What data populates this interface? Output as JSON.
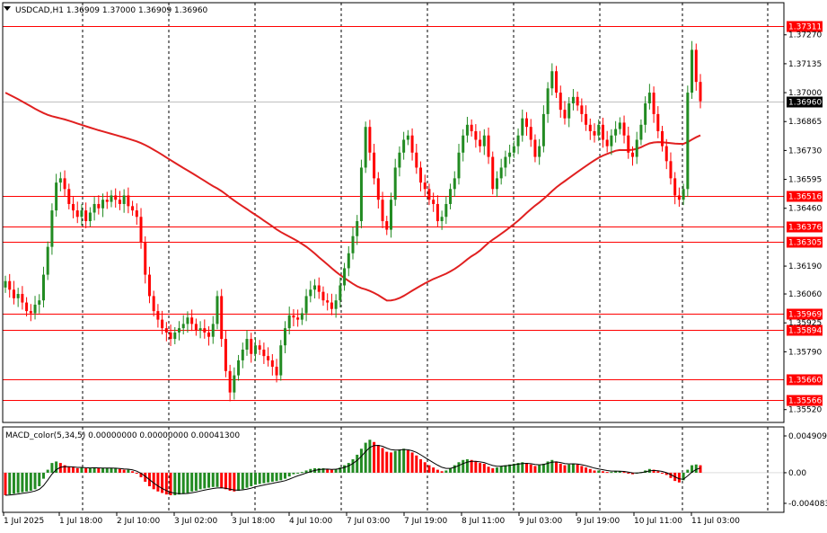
{
  "chart_header": {
    "symbol_info": "USDCAD,H1  1.36909 1.37000 1.36909 1.36960"
  },
  "indicator_header": {
    "label": "MACD_color(5,34,5) 0.00000000 0.00000000 0.00041300"
  },
  "colors": {
    "bull": "#228b22",
    "bear": "#ff0000",
    "level_line": "#ff0000",
    "ma_line": "#e02020",
    "price_tag": "#000000",
    "grid": "#000000"
  },
  "chart_data": [
    {
      "type": "candlestick",
      "title": "USDCAD,H1",
      "ylim": [
        1.3546,
        1.3742
      ],
      "price_axis_ticks": [
        "1.37270",
        "1.37135",
        "1.37000",
        "1.36865",
        "1.36730",
        "1.36595",
        "1.36460",
        "1.36190",
        "1.36060",
        "1.35925",
        "1.35790",
        "1.35520"
      ],
      "horizontal_levels": [
        {
          "value": 1.37311,
          "label": "1.37311"
        },
        {
          "value": 1.36516,
          "label": "1.36516"
        },
        {
          "value": 1.36376,
          "label": "1.36376"
        },
        {
          "value": 1.36305,
          "label": "1.36305"
        },
        {
          "value": 1.35969,
          "label": "1.35969"
        },
        {
          "value": 1.35894,
          "label": "1.35894"
        },
        {
          "value": 1.3566,
          "label": "1.35660"
        },
        {
          "value": 1.35566,
          "label": "1.35566"
        }
      ],
      "current_price": {
        "value": 1.3696,
        "label": "1.36960"
      },
      "time_axis_labels": [
        "1 Jul 2025",
        "1 Jul 18:00",
        "2 Jul 10:00",
        "3 Jul 02:00",
        "3 Jul 18:00",
        "4 Jul 10:00",
        "7 Jul 03:00",
        "7 Jul 19:00",
        "8 Jul 11:00",
        "9 Jul 03:00",
        "9 Jul 19:00",
        "10 Jul 11:00",
        "11 Jul 03:00"
      ],
      "candles_close": [
        1.3612,
        1.3608,
        1.3604,
        1.3606,
        1.3602,
        1.3598,
        1.3597,
        1.3601,
        1.3603,
        1.3615,
        1.3628,
        1.3645,
        1.3658,
        1.366,
        1.3655,
        1.3648,
        1.3645,
        1.3642,
        1.3645,
        1.364,
        1.3644,
        1.3648,
        1.3646,
        1.365,
        1.3649,
        1.3652,
        1.365,
        1.3648,
        1.3652,
        1.3647,
        1.3645,
        1.3642,
        1.363,
        1.3615,
        1.3605,
        1.3598,
        1.3594,
        1.359,
        1.3588,
        1.3585,
        1.3588,
        1.359,
        1.3592,
        1.3595,
        1.3592,
        1.3589,
        1.359,
        1.3588,
        1.3586,
        1.3592,
        1.3605,
        1.3585,
        1.357,
        1.356,
        1.3568,
        1.3575,
        1.358,
        1.3585,
        1.3578,
        1.3582,
        1.358,
        1.3577,
        1.3575,
        1.3572,
        1.3568,
        1.3582,
        1.359,
        1.3596,
        1.3595,
        1.3594,
        1.3597,
        1.3605,
        1.3608,
        1.361,
        1.3607,
        1.3603,
        1.3602,
        1.3599,
        1.3603,
        1.361,
        1.3618,
        1.3625,
        1.3633,
        1.364,
        1.3665,
        1.3684,
        1.3672,
        1.366,
        1.365,
        1.364,
        1.3636,
        1.365,
        1.3665,
        1.3672,
        1.3678,
        1.368,
        1.3672,
        1.3665,
        1.3658,
        1.3655,
        1.365,
        1.3648,
        1.364,
        1.3642,
        1.3648,
        1.3655,
        1.366,
        1.3672,
        1.368,
        1.3685,
        1.3682,
        1.3678,
        1.3675,
        1.368,
        1.367,
        1.3655,
        1.366,
        1.3665,
        1.367,
        1.3672,
        1.3675,
        1.368,
        1.3688,
        1.3684,
        1.3678,
        1.367,
        1.3675,
        1.369,
        1.3702,
        1.371,
        1.37,
        1.3692,
        1.3688,
        1.3695,
        1.3698,
        1.3694,
        1.369,
        1.3685,
        1.3682,
        1.368,
        1.3685,
        1.3678,
        1.3675,
        1.368,
        1.3683,
        1.3686,
        1.368,
        1.3672,
        1.367,
        1.3678,
        1.3685,
        1.3695,
        1.37,
        1.369,
        1.3682,
        1.3675,
        1.3668,
        1.366,
        1.3652,
        1.365,
        1.3655,
        1.37,
        1.372,
        1.3705,
        1.3696
      ]
    },
    {
      "type": "bar",
      "title": "MACD_color(5,34,5)",
      "ylim": [
        -0.004083,
        0.004909
      ],
      "axis_ticks": [
        "0.0049093",
        "0.00",
        "-0.0040836"
      ],
      "values": [
        -0.003,
        -0.0029,
        -0.0028,
        -0.0027,
        -0.0026,
        -0.0025,
        -0.0024,
        -0.0022,
        -0.0018,
        -0.0008,
        0.0004,
        0.0013,
        0.0015,
        0.0013,
        0.001,
        0.0008,
        0.0007,
        0.0006,
        0.0007,
        0.0006,
        0.0006,
        0.0007,
        0.0006,
        0.0006,
        0.0006,
        0.0006,
        0.0006,
        0.0005,
        0.0004,
        0.0004,
        0.0002,
        -0.0001,
        -0.0006,
        -0.0012,
        -0.0018,
        -0.0022,
        -0.0025,
        -0.0027,
        -0.0029,
        -0.003,
        -0.003,
        -0.0029,
        -0.0028,
        -0.0027,
        -0.0025,
        -0.0024,
        -0.0022,
        -0.0021,
        -0.002,
        -0.0019,
        -0.0019,
        -0.002,
        -0.0022,
        -0.0024,
        -0.0025,
        -0.0024,
        -0.0022,
        -0.002,
        -0.0018,
        -0.0016,
        -0.0015,
        -0.0014,
        -0.0013,
        -0.0012,
        -0.0011,
        -0.001,
        -0.0008,
        -0.0005,
        -0.0002,
        0.0,
        0.0001,
        0.0003,
        0.0005,
        0.0006,
        0.0006,
        0.0006,
        0.0005,
        0.0004,
        0.0005,
        0.0007,
        0.001,
        0.0013,
        0.0018,
        0.0024,
        0.0032,
        0.004,
        0.0044,
        0.0041,
        0.0037,
        0.0033,
        0.0028,
        0.0027,
        0.0029,
        0.0031,
        0.0032,
        0.003,
        0.0027,
        0.0023,
        0.0018,
        0.0014,
        0.001,
        0.0007,
        0.0004,
        0.0002,
        0.0003,
        0.0006,
        0.001,
        0.0014,
        0.0017,
        0.0018,
        0.0017,
        0.0015,
        0.0013,
        0.0012,
        0.0008,
        0.0006,
        0.0007,
        0.0009,
        0.001,
        0.0011,
        0.0012,
        0.0013,
        0.0014,
        0.0013,
        0.0011,
        0.0009,
        0.001,
        0.0012,
        0.0015,
        0.0017,
        0.0015,
        0.0012,
        0.001,
        0.0011,
        0.0012,
        0.0011,
        0.0009,
        0.0007,
        0.0005,
        0.0003,
        0.0003,
        0.0002,
        0.0001,
        0.0001,
        0.0002,
        0.0002,
        0.0001,
        -0.0001,
        -0.0002,
        -0.0001,
        0.0001,
        0.0003,
        0.0005,
        0.0004,
        0.0002,
        0.0,
        -0.0003,
        -0.0007,
        -0.0011,
        -0.0013,
        -0.001,
        0.0004,
        0.001,
        0.0011,
        0.001
      ]
    }
  ]
}
